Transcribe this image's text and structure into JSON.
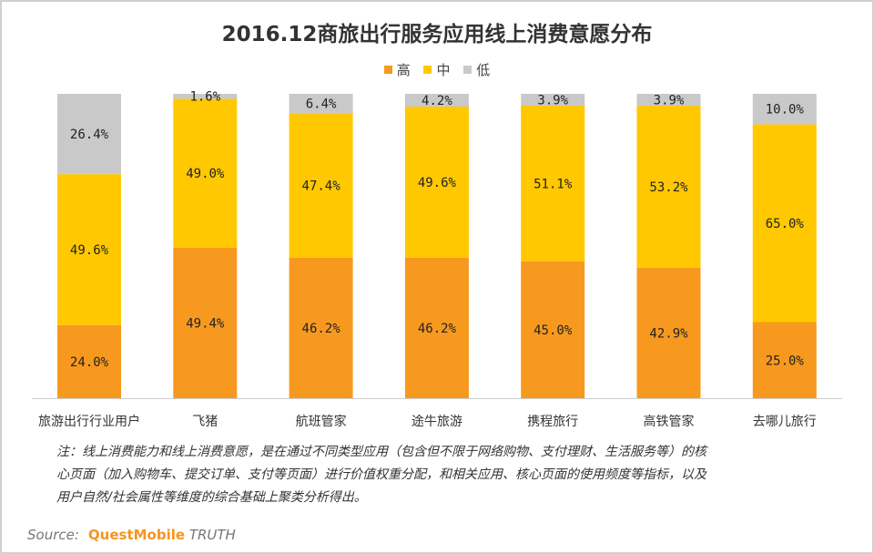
{
  "chart_data": {
    "type": "bar",
    "stacked": true,
    "title": "2016.12商旅出行服务应用线上消费意愿分布",
    "categories": [
      "旅游出行行业用户",
      "飞猪",
      "航班管家",
      "途牛旅游",
      "携程旅行",
      "高铁管家",
      "去哪儿旅行"
    ],
    "series": [
      {
        "name": "高",
        "color": "#F7991E",
        "values": [
          24.0,
          49.4,
          46.2,
          46.2,
          45.0,
          42.9,
          25.0
        ]
      },
      {
        "name": "中",
        "color": "#FFC800",
        "values": [
          49.6,
          49.0,
          47.4,
          49.6,
          51.1,
          53.2,
          65.0
        ]
      },
      {
        "name": "低",
        "color": "#C9C9C9",
        "values": [
          26.4,
          1.6,
          6.4,
          4.2,
          3.9,
          3.9,
          10.0
        ]
      }
    ],
    "ylim": [
      0,
      100
    ],
    "unit": "%",
    "legend_position": "top-center",
    "grid": false
  },
  "note": [
    "注：线上消费能力和线上消费意愿，是在通过不同类型应用（包含但不限于网络购物、支付理财、生活服务等）的核",
    "心页面（加入购物车、提交订单、支付等页面）进行价值权重分配，和相关应用、核心页面的使用频度等指标，以及",
    "用户自然/社会属性等维度的综合基础上聚类分析得出。"
  ],
  "source": {
    "label": "Source:",
    "brand": "QuestMobile",
    "suffix": "TRUTH"
  }
}
